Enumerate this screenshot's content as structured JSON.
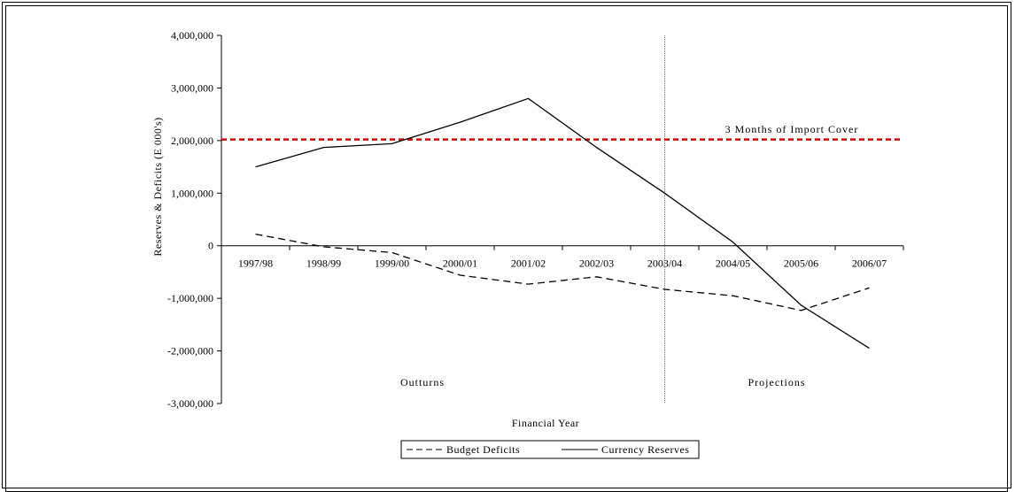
{
  "chart_data": {
    "type": "line",
    "xlabel": "Financial Year",
    "ylabel": "Reserves & Deficits (E 000's)",
    "categories": [
      "1997/98",
      "1998/99",
      "1999/00",
      "2000/01",
      "2001/02",
      "2002/03",
      "2003/04",
      "2004/05",
      "2005/06",
      "2006/07"
    ],
    "ylim": [
      -3000000,
      4000000
    ],
    "yticks": [
      4000000,
      3000000,
      2000000,
      1000000,
      0,
      -1000000,
      -2000000,
      -3000000
    ],
    "ytick_labels": [
      "4,000,000",
      "3,000,000",
      "2,000,000",
      "1,000,000",
      "0",
      "-1,000,000",
      "-2,000,000",
      "-3,000,000"
    ],
    "grid": false,
    "legend_position": "bottom",
    "series": [
      {
        "name": "Budget Deficits",
        "style": "dashed",
        "color": "#000000",
        "values": [
          220000,
          -20000,
          -130000,
          -560000,
          -730000,
          -590000,
          -830000,
          -950000,
          -1230000,
          -800000
        ]
      },
      {
        "name": "Currency Reserves",
        "style": "solid",
        "color": "#000000",
        "values": [
          1500000,
          1870000,
          1940000,
          2350000,
          2800000,
          1870000,
          1000000,
          70000,
          -1130000,
          -1950000
        ]
      }
    ],
    "reference_line": {
      "label": "3 Months of Import Cover",
      "value": 2020000,
      "color": "#cc0000",
      "style": "dashed"
    },
    "annotations": {
      "left_region": "Outturns",
      "right_region": "Projections"
    },
    "divider_after_category": "2002/03"
  }
}
